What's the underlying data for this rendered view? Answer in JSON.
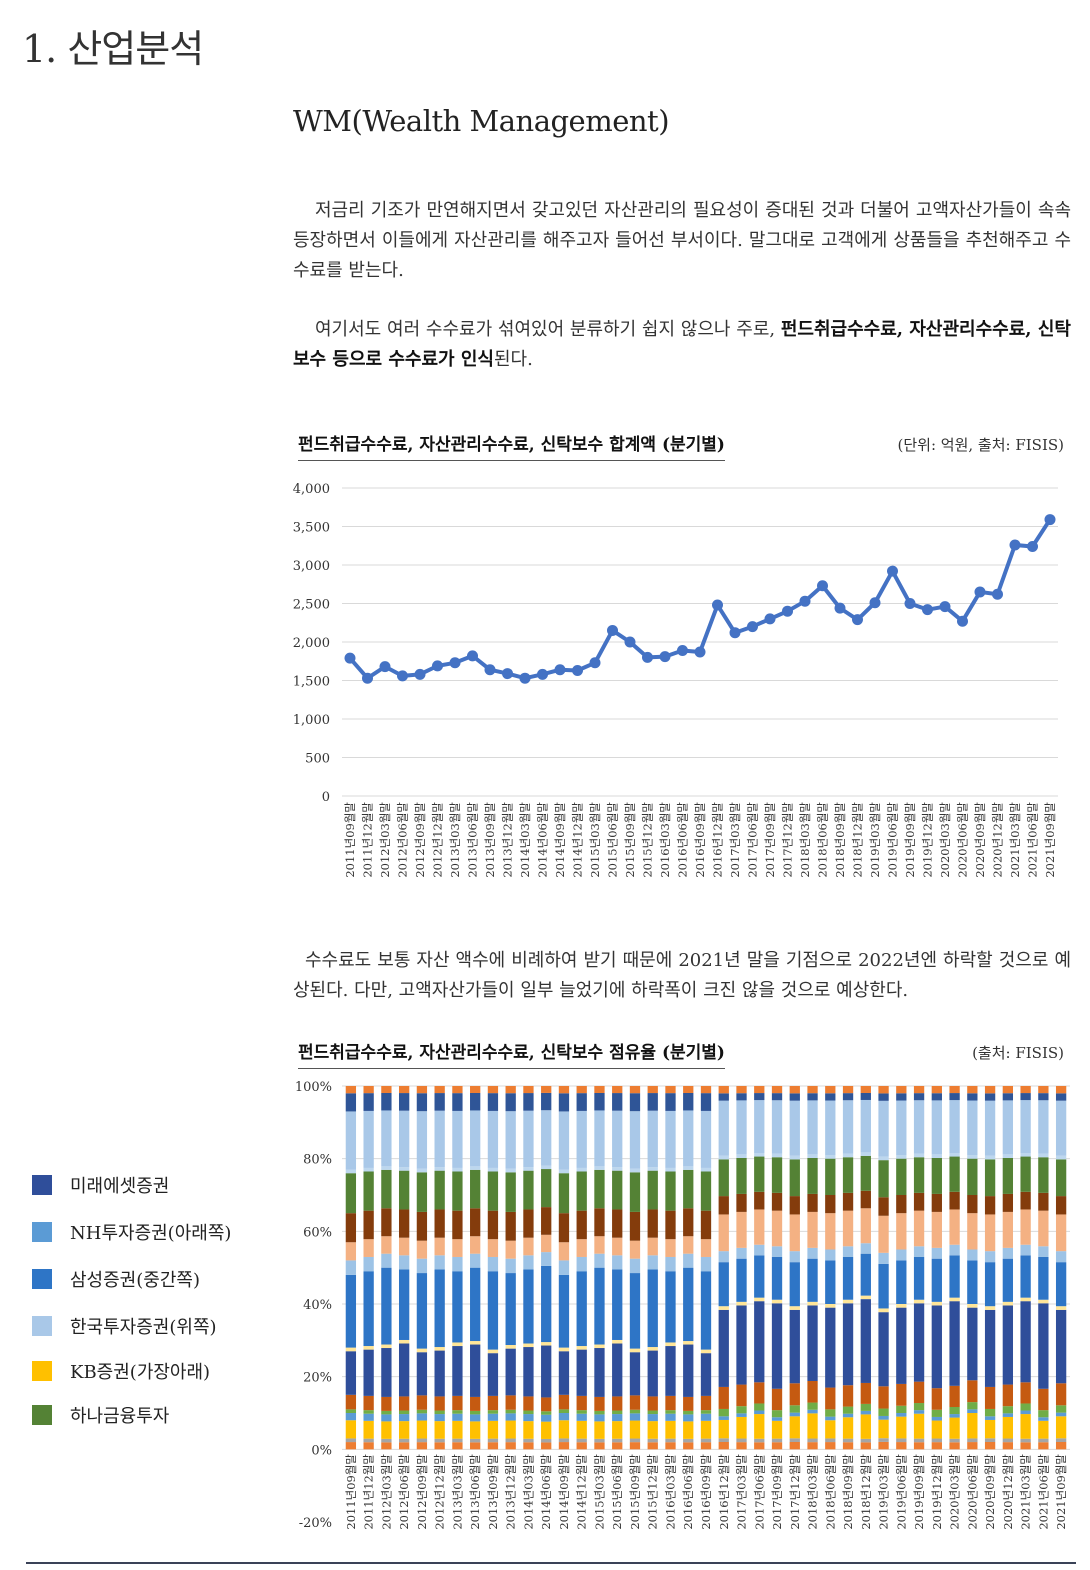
{
  "section_title": "1. 산업분석",
  "sub_title": "WM(Wealth Management)",
  "paragraph1": "저금리 기조가 만연해지면서 갖고있던 자산관리의 필요성이 증대된 것과 더불어 고액자산가들이 속속 등장하면서 이들에게 자산관리를 해주고자 들어선 부서이다. 말그대로 고객에게 상품들을 추천해주고 수수료를 받는다.",
  "paragraph2": {
    "plain": "여기서도 여러 수수료가 섞여있어 분류하기 쉽지 않으나 주로, ",
    "bold": "펀드취급수수료, 자산관리수수료, 신탁보수 등으로 수수료가 인식",
    "end": "된다."
  },
  "paragraph3": "수수료도 보통 자산 액수에 비례하여 받기 때문에 2021년 말을 기점으로 2022년엔 하락할 것으로 예상된다. 다만, 고액자산가들이 일부 늘었기에 하락폭이 크진 않을 것으로 예상한다.",
  "chart1_header": {
    "title": "펀드취급수수료, 자산관리수수료, 신탁보수 합계액 (분기별)",
    "source": "(단위: 억원, 출처: FISIS)"
  },
  "chart2_header": {
    "title": "펀드취급수수료, 자산관리수수료, 신탁보수 점유율 (분기별)",
    "source": "(출처: FISIS)"
  },
  "legend": [
    {
      "label": "미래에셋증권",
      "color": "#2F4E9A"
    },
    {
      "label": "NH투자증권(아래쪽)",
      "color": "#5B9BD5"
    },
    {
      "label": "삼성증권(중간쪽)",
      "color": "#2E75C6"
    },
    {
      "label": "한국투자증권(위쪽)",
      "color": "#A9C8E8"
    },
    {
      "label": "KB증권(가장아래)",
      "color": "#FFC000"
    },
    {
      "label": "하나금융투자",
      "color": "#548235"
    }
  ],
  "chart_data": [
    {
      "type": "line",
      "title": "펀드취급수수료, 자산관리수수료, 신탁보수 합계액 (분기별)",
      "unit": "억원",
      "categories": [
        "2011년09월말",
        "2011년12월말",
        "2012년03월말",
        "2012년06월말",
        "2012년09월말",
        "2012년12월말",
        "2013년03월말",
        "2013년06월말",
        "2013년09월말",
        "2013년12월말",
        "2014년03월말",
        "2014년06월말",
        "2014년09월말",
        "2014년12월말",
        "2015년03월말",
        "2015년06월말",
        "2015년09월말",
        "2015년12월말",
        "2016년03월말",
        "2016년06월말",
        "2016년09월말",
        "2016년12월말",
        "2017년03월말",
        "2017년06월말",
        "2017년09월말",
        "2017년12월말",
        "2018년03월말",
        "2018년06월말",
        "2018년09월말",
        "2018년12월말",
        "2019년03월말",
        "2019년06월말",
        "2019년09월말",
        "2019년12월말",
        "2020년03월말",
        "2020년06월말",
        "2020년09월말",
        "2020년12월말",
        "2021년03월말",
        "2021년06월말",
        "2021년09월말"
      ],
      "values": [
        1790,
        1530,
        1680,
        1560,
        1580,
        1690,
        1730,
        1820,
        1640,
        1590,
        1530,
        1580,
        1640,
        1630,
        1730,
        2150,
        2000,
        1800,
        1810,
        1890,
        1870,
        2480,
        2120,
        2200,
        2300,
        2400,
        2530,
        2730,
        2440,
        2290,
        2510,
        2920,
        2500,
        2420,
        2460,
        2270,
        2650,
        2620,
        3260,
        3240,
        3590
      ],
      "ylim": [
        0,
        4000
      ],
      "yticks": [
        "0",
        "500",
        "1,000",
        "1,500",
        "2,000",
        "2,500",
        "3,000",
        "3,500",
        "4,000"
      ],
      "color": "#4472C4",
      "grid": true
    },
    {
      "type": "bar",
      "stacked": true,
      "title": "펀드취급수수료, 자산관리수수료, 신탁보수 점유율 (분기별)",
      "categories": [
        "2011년09월말",
        "2011년12월말",
        "2012년03월말",
        "2012년06월말",
        "2012년09월말",
        "2012년12월말",
        "2013년03월말",
        "2013년06월말",
        "2013년09월말",
        "2013년12월말",
        "2014년03월말",
        "2014년06월말",
        "2014년09월말",
        "2014년12월말",
        "2015년03월말",
        "2015년06월말",
        "2015년09월말",
        "2015년12월말",
        "2016년03월말",
        "2016년06월말",
        "2016년09월말",
        "2016년12월말",
        "2017년03월말",
        "2017년06월말",
        "2017년09월말",
        "2017년12월말",
        "2018년03월말",
        "2018년06월말",
        "2018년09월말",
        "2018년12월말",
        "2019년03월말",
        "2019년06월말",
        "2019년09월말",
        "2019년12월말",
        "2020년03월말",
        "2020년06월말",
        "2020년09월말",
        "2020년12월말",
        "2021년03월말",
        "2021년06월말",
        "2021년09월말"
      ],
      "ylim": [
        -20,
        100
      ],
      "yticks": [
        "-20%",
        "0%",
        "20%",
        "40%",
        "60%",
        "80%",
        "100%"
      ],
      "segment_colors": [
        "#ED7D31",
        "#A5A5A5",
        "#FFC000",
        "#5B9BD5",
        "#70AD47",
        "#C55A11",
        "#2F4E9A",
        "#FFE699",
        "#2E75C6",
        "#9DC3E6",
        "#F4B183",
        "#843C0C",
        "#548235",
        "#BDD7EE",
        "#A9C8E8",
        "#2F5597",
        "#ED7D31"
      ],
      "series": [
        {
          "name": "미래에셋증권",
          "color": "#2F4E9A"
        },
        {
          "name": "NH투자증권(아래쪽)",
          "color": "#5B9BD5"
        },
        {
          "name": "삼성증권(중간쪽)",
          "color": "#2E75C6"
        },
        {
          "name": "한국투자증권(위쪽)",
          "color": "#A9C8E8"
        },
        {
          "name": "KB증권(가장아래)",
          "color": "#FFC000"
        },
        {
          "name": "하나금융투자",
          "color": "#548235"
        }
      ]
    }
  ]
}
